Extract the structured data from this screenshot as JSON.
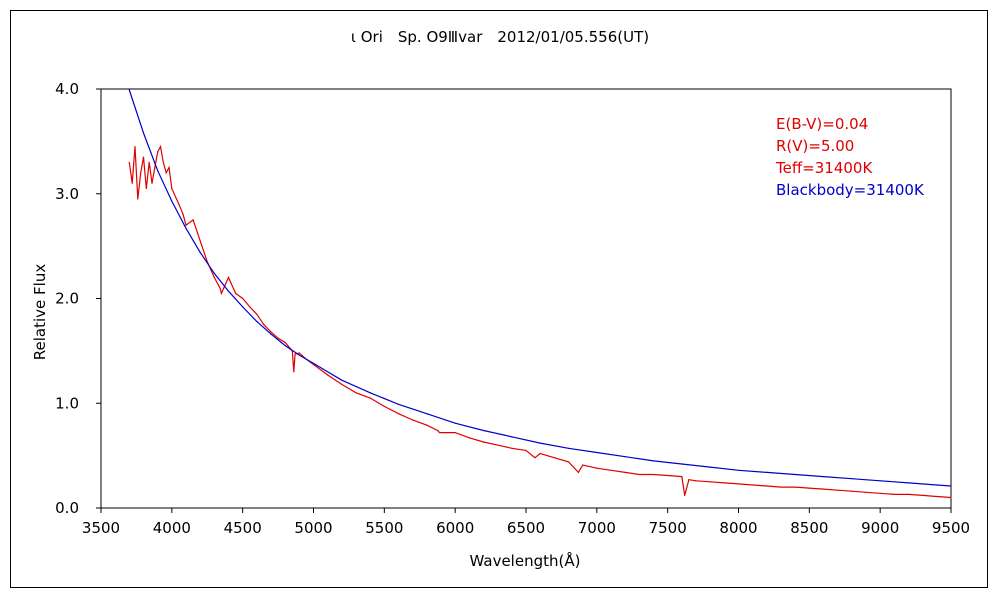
{
  "chart_data": {
    "type": "line",
    "title": "ι Ori　Sp. O9Ⅲvar　2012/01/05.556(UT)",
    "xlabel": "Wavelength(Å)",
    "ylabel": "Relative Flux",
    "xlim": [
      3500,
      9500
    ],
    "ylim": [
      0.0,
      4.0
    ],
    "x_ticks": [
      "3500",
      "4000",
      "4500",
      "5000",
      "5500",
      "6000",
      "6500",
      "7000",
      "7500",
      "8000",
      "8500",
      "9000",
      "9500"
    ],
    "y_ticks": [
      "0.0",
      "1.0",
      "2.0",
      "3.0",
      "4.0"
    ],
    "grid": false,
    "legend_position": "top-right",
    "annotations": [
      {
        "text": "E(B-V)=0.04",
        "color": "#e00000"
      },
      {
        "text": "R(V)=5.00",
        "color": "#e00000"
      },
      {
        "text": "Teff=31400K",
        "color": "#e00000"
      },
      {
        "text": "Blackbody=31400K",
        "color": "#0000c8"
      }
    ],
    "series": [
      {
        "color": "#e00000",
        "x": [
          3700,
          3720,
          3740,
          3760,
          3780,
          3800,
          3820,
          3840,
          3860,
          3880,
          3900,
          3920,
          3940,
          3960,
          3980,
          4000,
          4050,
          4080,
          4100,
          4150,
          4200,
          4250,
          4300,
          4340,
          4350,
          4400,
          4450,
          4500,
          4550,
          4600,
          4650,
          4700,
          4750,
          4800,
          4850,
          4861,
          4870,
          4900,
          4950,
          5000,
          5100,
          5200,
          5300,
          5400,
          5500,
          5600,
          5700,
          5800,
          5876,
          5890,
          6000,
          6100,
          6200,
          6300,
          6400,
          6500,
          6563,
          6600,
          6700,
          6800,
          6870,
          6900,
          7000,
          7100,
          7200,
          7300,
          7400,
          7500,
          7600,
          7620,
          7650,
          7700,
          7800,
          7900,
          8000,
          8100,
          8200,
          8300,
          8400,
          8500,
          8600,
          8700,
          8800,
          8900,
          9000,
          9100,
          9200,
          9300,
          9400,
          9500
        ],
        "values": [
          3.3,
          3.1,
          3.45,
          2.95,
          3.2,
          3.35,
          3.05,
          3.3,
          3.1,
          3.25,
          3.4,
          3.45,
          3.3,
          3.2,
          3.25,
          3.05,
          2.9,
          2.8,
          2.7,
          2.75,
          2.55,
          2.35,
          2.2,
          2.1,
          2.05,
          2.2,
          2.05,
          2.0,
          1.92,
          1.85,
          1.75,
          1.68,
          1.62,
          1.58,
          1.5,
          1.3,
          1.47,
          1.48,
          1.42,
          1.37,
          1.27,
          1.18,
          1.1,
          1.05,
          0.97,
          0.9,
          0.84,
          0.79,
          0.74,
          0.72,
          0.72,
          0.67,
          0.63,
          0.6,
          0.57,
          0.55,
          0.48,
          0.52,
          0.48,
          0.44,
          0.34,
          0.41,
          0.38,
          0.36,
          0.34,
          0.32,
          0.32,
          0.31,
          0.3,
          0.12,
          0.27,
          0.26,
          0.25,
          0.24,
          0.23,
          0.22,
          0.21,
          0.2,
          0.2,
          0.19,
          0.18,
          0.17,
          0.16,
          0.15,
          0.14,
          0.13,
          0.13,
          0.12,
          0.11,
          0.1
        ]
      },
      {
        "color": "#0000c8",
        "x": [
          3700,
          3800,
          3900,
          4000,
          4100,
          4200,
          4300,
          4400,
          4500,
          4600,
          4700,
          4800,
          4900,
          5000,
          5200,
          5400,
          5600,
          5800,
          6000,
          6200,
          6400,
          6600,
          6800,
          7000,
          7200,
          7400,
          7600,
          7800,
          8000,
          8200,
          8400,
          8600,
          8800,
          9000,
          9200,
          9400,
          9500
        ],
        "values": [
          3.99,
          3.58,
          3.22,
          2.93,
          2.67,
          2.44,
          2.24,
          2.07,
          1.92,
          1.78,
          1.66,
          1.55,
          1.46,
          1.38,
          1.22,
          1.1,
          0.99,
          0.9,
          0.81,
          0.74,
          0.68,
          0.62,
          0.57,
          0.53,
          0.49,
          0.45,
          0.42,
          0.39,
          0.36,
          0.34,
          0.32,
          0.3,
          0.28,
          0.26,
          0.24,
          0.22,
          0.21
        ]
      }
    ]
  }
}
